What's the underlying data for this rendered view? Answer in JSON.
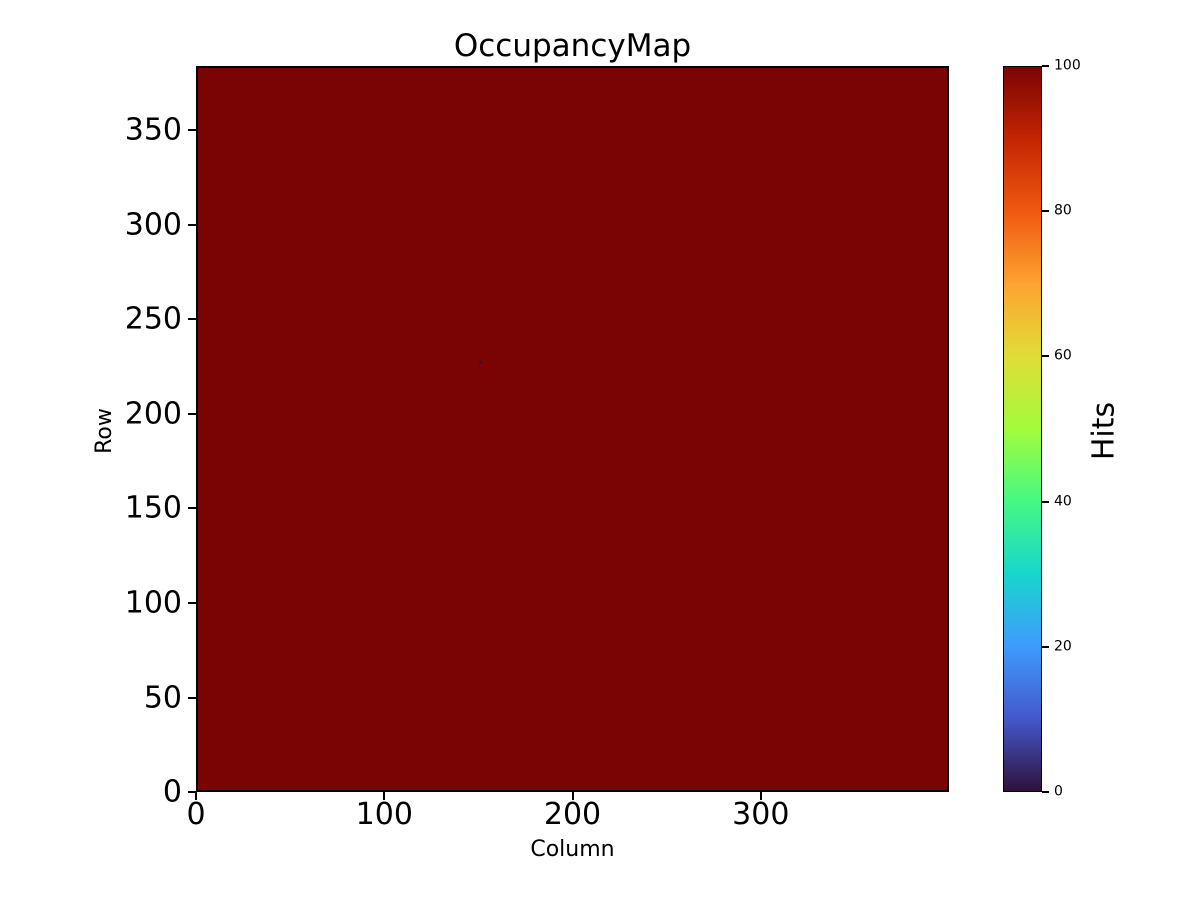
{
  "chart_data": {
    "type": "heatmap",
    "title": "OccupancyMap",
    "xlabel": "Column",
    "ylabel": "Row",
    "colorbar_label": "Hits",
    "colormap": "turbo",
    "xlim": [
      0,
      400
    ],
    "ylim": [
      0,
      384
    ],
    "x_ticks": [
      0,
      100,
      200,
      300
    ],
    "y_ticks": [
      0,
      50,
      100,
      150,
      200,
      250,
      300,
      350
    ],
    "grid": false,
    "fill_value": 100,
    "fill_color": "#7a0403",
    "dead_pixel": {
      "column": 151,
      "row": 227,
      "hits": 0,
      "color": "#30123b"
    },
    "description": "Uniform occupancy of ~100 hits across all pixels except one ~0-hit dead pixel",
    "colorbar": {
      "range": [
        0,
        100
      ],
      "ticks": [
        0,
        20,
        40,
        60,
        80,
        100
      ],
      "position": "right",
      "gradient_stops": [
        {
          "t": 0.0,
          "color": "#30123b"
        },
        {
          "t": 0.1,
          "color": "#4458cb"
        },
        {
          "t": 0.2,
          "color": "#3e9bfe"
        },
        {
          "t": 0.3,
          "color": "#18d6cc"
        },
        {
          "t": 0.4,
          "color": "#46f884"
        },
        {
          "t": 0.5,
          "color": "#a2fc3c"
        },
        {
          "t": 0.6,
          "color": "#e1dd37"
        },
        {
          "t": 0.7,
          "color": "#fea331"
        },
        {
          "t": 0.8,
          "color": "#ef5911"
        },
        {
          "t": 0.9,
          "color": "#c42503"
        },
        {
          "t": 1.0,
          "color": "#7a0403"
        }
      ]
    }
  }
}
